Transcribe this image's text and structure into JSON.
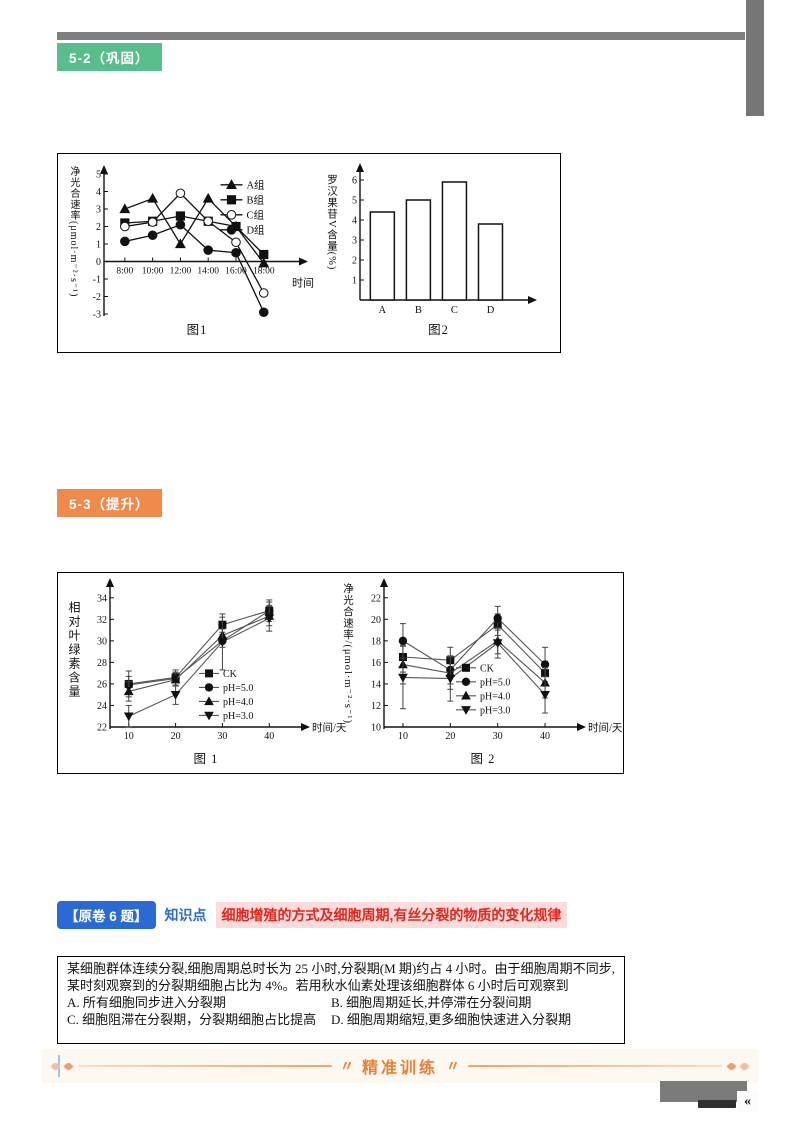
{
  "badges": {
    "section1": "5-2（巩固）",
    "section2": "5-3（提升）",
    "question_source": "【原卷 6 题】",
    "knowledge_label": "知识点",
    "knowledge_text": "细胞增殖的方式及细胞周期,有丝分裂的物质的变化规律"
  },
  "question": {
    "stem": "某细胞群体连续分裂,细胞周期总时长为 25 小时,分裂期(M 期)约占 4 小时。由于细胞周期不同步,某时刻观察到的分裂期细胞占比为 4%。若用秋水仙素处理该细胞群体 6 小时后可观察到",
    "options": [
      {
        "label": "A.",
        "text": "所有细胞同步进入分裂期"
      },
      {
        "label": "B.",
        "text": "细胞周期延长,并停滞在分裂间期"
      },
      {
        "label": "C.",
        "text": "细胞阻滞在分裂期，分裂期细胞占比提高"
      },
      {
        "label": "D.",
        "text": "细胞周期缩短,更多细胞快速进入分裂期"
      }
    ]
  },
  "footer_banner": {
    "title": "精准训练",
    "decor": "〃"
  },
  "page_footer": {
    "mark": "«"
  },
  "colors": {
    "badge_green": "#57be8c",
    "badge_orange": "#ef8a4b",
    "badge_blue": "#2a6ad3",
    "knowledge_red": "#e8251d",
    "knowledge_red_bg": "#fadcdc",
    "banner_orange": "#ee7e35",
    "gray_bar": "#7f7f7f"
  },
  "chart_data": [
    {
      "type": "line",
      "caption": "图1",
      "xlabel": "时间",
      "ylabel": "净光合速率(μmol·m⁻²·s⁻¹)",
      "x_categories": [
        "8:00",
        "10:00",
        "12:00",
        "14:00",
        "16:00",
        "18:00"
      ],
      "ylim": [
        -3,
        5
      ],
      "yticks": [
        -3,
        -2,
        -1,
        0,
        1,
        2,
        3,
        4,
        5
      ],
      "legend_position": "top-right",
      "series": [
        {
          "name": "A组",
          "marker": "triangle",
          "fill": "#111",
          "values": [
            3.0,
            3.6,
            1.0,
            3.6,
            2.0,
            -0.1
          ]
        },
        {
          "name": "B组",
          "marker": "square",
          "fill": "#111",
          "values": [
            2.2,
            2.3,
            2.6,
            2.3,
            2.0,
            0.4
          ]
        },
        {
          "name": "C组",
          "marker": "circle",
          "fill": "#fff",
          "values": [
            2.0,
            2.25,
            3.9,
            2.3,
            1.1,
            -1.8
          ]
        },
        {
          "name": "D组",
          "marker": "circle",
          "fill": "#111",
          "values": [
            1.15,
            1.5,
            2.1,
            0.65,
            0.5,
            -2.9
          ]
        }
      ]
    },
    {
      "type": "bar",
      "caption": "图2",
      "ylabel": "罗汉果苷V含量(%)",
      "categories": [
        "A",
        "B",
        "C",
        "D"
      ],
      "values": [
        4.4,
        5.0,
        5.9,
        3.8
      ],
      "ylim": [
        0,
        6.4
      ],
      "yticks": [
        1,
        2,
        3,
        4,
        5,
        6
      ]
    },
    {
      "type": "line",
      "caption": "图 1",
      "xlabel": "时间/天",
      "ylabel": "相对叶绿素含量",
      "x": [
        10,
        20,
        30,
        40
      ],
      "xlim": [
        6,
        44
      ],
      "ylim": [
        22,
        35
      ],
      "yticks": [
        22,
        24,
        26,
        28,
        30,
        32,
        34
      ],
      "legend_position": "lower-right",
      "series": [
        {
          "name": "CK",
          "marker": "square",
          "fill": "#111",
          "values": [
            26.0,
            26.6,
            31.5,
            32.8
          ],
          "err": [
            1.2,
            0.7,
            0.7,
            1.0
          ]
        },
        {
          "name": "pH=5.0",
          "marker": "circle",
          "fill": "#111",
          "values": [
            25.9,
            26.5,
            30.0,
            32.8
          ],
          "err": [
            0.8,
            0.6,
            0.6,
            0.8
          ]
        },
        {
          "name": "pH=4.0",
          "marker": "triangle",
          "fill": "#111",
          "values": [
            25.3,
            26.4,
            30.5,
            32.3
          ],
          "err": [
            0.9,
            0.6,
            0.6,
            0.9
          ]
        },
        {
          "name": "pH=3.0",
          "marker": "triangle-down",
          "fill": "#111",
          "values": [
            23.0,
            25.0,
            29.9,
            32.1
          ],
          "err": [
            1.0,
            0.9,
            2.6,
            1.2
          ]
        }
      ]
    },
    {
      "type": "line",
      "caption": "图 2",
      "xlabel": "时间/天",
      "ylabel": "净光合速率/(μmol·m⁻²·s⁻¹)",
      "x": [
        10,
        20,
        30,
        40
      ],
      "xlim": [
        6,
        44
      ],
      "ylim": [
        10,
        23
      ],
      "yticks": [
        10,
        12,
        14,
        16,
        18,
        20,
        22
      ],
      "legend_position": "lower-right",
      "series": [
        {
          "name": "CK",
          "marker": "square",
          "fill": "#111",
          "values": [
            16.5,
            16.2,
            19.5,
            15.0
          ],
          "err": [
            1.4,
            1.2,
            1.0,
            1.1
          ]
        },
        {
          "name": "pH=5.0",
          "marker": "circle",
          "fill": "#111",
          "values": [
            18.0,
            15.3,
            20.1,
            15.8
          ],
          "err": [
            1.6,
            1.3,
            1.1,
            1.6
          ]
        },
        {
          "name": "pH=4.0",
          "marker": "triangle",
          "fill": "#111",
          "values": [
            15.8,
            15.0,
            18.0,
            14.1
          ],
          "err": [
            1.8,
            1.5,
            1.2,
            1.4
          ]
        },
        {
          "name": "pH=3.0",
          "marker": "triangle-down",
          "fill": "#111",
          "values": [
            14.6,
            14.5,
            17.8,
            13.0
          ],
          "err": [
            2.9,
            2.1,
            1.4,
            1.7
          ]
        }
      ]
    }
  ]
}
